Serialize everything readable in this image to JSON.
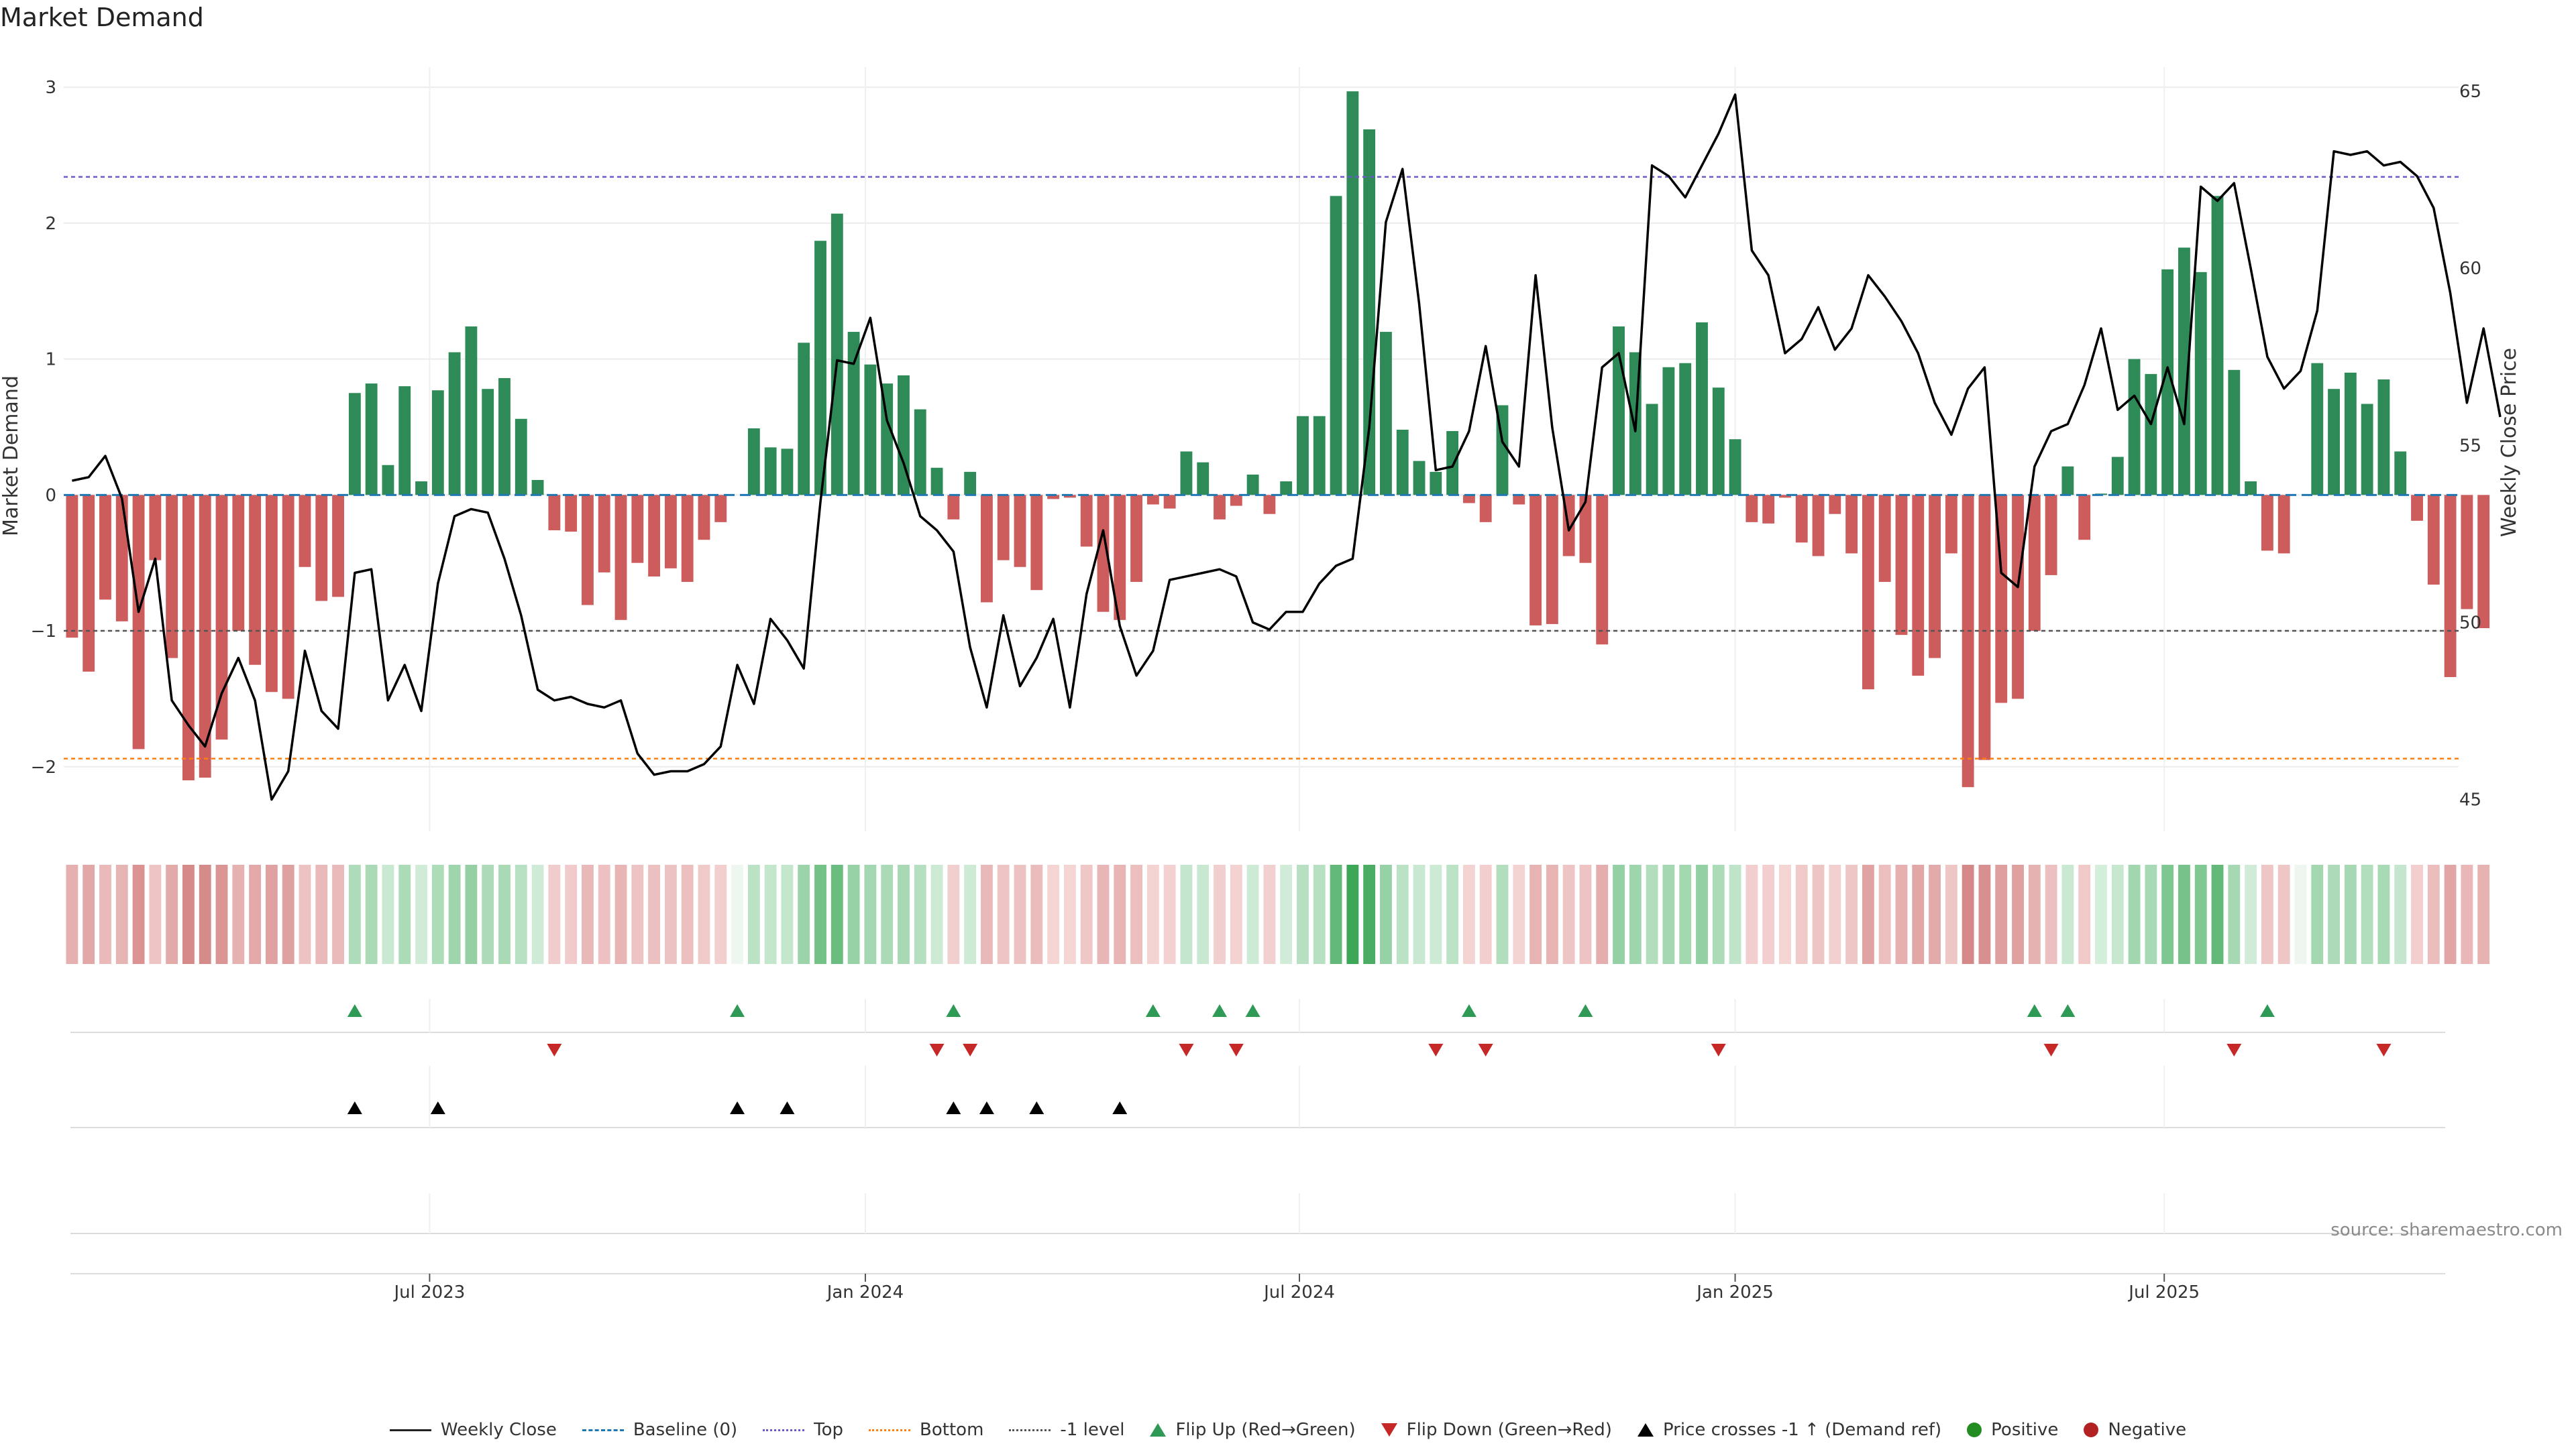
{
  "colors": {
    "pos_bar": "#2e8b57",
    "neg_bar": "#cd5c5c",
    "price_line": "#000000",
    "baseline": "#1f77b4",
    "top_line": "#6a5acd",
    "bottom_line": "#ff7f0e",
    "neg1_line": "#555555",
    "flip_up": "#2e9a56",
    "flip_down": "#c62828",
    "cross": "#000000",
    "positive_dot": "#228b22",
    "negative_dot": "#b22222"
  },
  "chart_data": {
    "type": "bar",
    "title": "Market Demand",
    "ylabel": "Market Demand",
    "y2label": "Weekly Close Price",
    "ylim": [
      -2.45,
      3.05
    ],
    "y2lim": [
      44.2,
      65.3
    ],
    "yticks": [
      {
        "v": 3,
        "label": "3"
      },
      {
        "v": 2,
        "label": "2"
      },
      {
        "v": 1,
        "label": "1"
      },
      {
        "v": 0,
        "label": "0"
      },
      {
        "v": -1,
        "label": "−1"
      },
      {
        "v": -2,
        "label": "−2"
      }
    ],
    "y2ticks": [
      {
        "v": 65,
        "label": "65"
      },
      {
        "v": 60,
        "label": "60"
      },
      {
        "v": 55,
        "label": "55"
      },
      {
        "v": 50,
        "label": "50"
      },
      {
        "v": 45,
        "label": "45"
      }
    ],
    "week_count": 144,
    "xticks": [
      {
        "week": 21.5,
        "label": "Jul 2023"
      },
      {
        "week": 47.7,
        "label": "Jan 2024"
      },
      {
        "week": 73.8,
        "label": "Jul 2024"
      },
      {
        "week": 100,
        "label": "Jan 2025"
      },
      {
        "week": 125.8,
        "label": "Jul 2025"
      }
    ],
    "reference_levels": {
      "top": 2.34,
      "bottom": -1.94,
      "minus_one": -1,
      "baseline": 0
    },
    "demand": [
      -1.05,
      -1.3,
      -0.77,
      -0.93,
      -1.87,
      -0.48,
      -1.2,
      -2.1,
      -2.08,
      -1.8,
      -1.0,
      -1.25,
      -1.45,
      -1.5,
      -0.53,
      -0.78,
      -0.75,
      0.75,
      0.82,
      0.22,
      0.8,
      0.1,
      0.77,
      1.05,
      1.24,
      0.78,
      0.86,
      0.56,
      0.11,
      -0.26,
      -0.27,
      -0.81,
      -0.57,
      -0.92,
      -0.5,
      -0.6,
      -0.54,
      -0.64,
      -0.33,
      -0.2,
      0,
      0.49,
      0.35,
      0.34,
      1.12,
      1.87,
      2.07,
      1.2,
      0.96,
      0.82,
      0.88,
      0.63,
      0.2,
      -0.18,
      0.17,
      -0.79,
      -0.48,
      -0.53,
      -0.7,
      -0.03,
      -0.02,
      -0.38,
      -0.86,
      -0.92,
      -0.64,
      -0.07,
      -0.1,
      0.32,
      0.24,
      -0.18,
      -0.08,
      0.15,
      -0.14,
      0.1,
      0.58,
      0.58,
      2.2,
      2.97,
      2.69,
      1.2,
      0.48,
      0.25,
      0.17,
      0.47,
      -0.06,
      -0.2,
      0.66,
      -0.07,
      -0.96,
      -0.95,
      -0.45,
      -0.5,
      -1.1,
      1.24,
      1.05,
      0.67,
      0.94,
      0.97,
      1.27,
      0.79,
      0.41,
      -0.2,
      -0.21,
      -0.02,
      -0.35,
      -0.45,
      -0.14,
      -0.43,
      -1.43,
      -0.64,
      -1.03,
      -1.33,
      -1.2,
      -0.43,
      -2.15,
      -1.95,
      -1.53,
      -1.5,
      -1.0,
      -0.59,
      0.21,
      -0.33,
      0.01,
      0.28,
      1.0,
      0.89,
      1.66,
      1.82,
      1.64,
      2.2,
      0.92,
      0.1,
      -0.41,
      -0.43,
      0,
      0.97,
      0.78,
      0.9,
      0.67,
      0.85,
      0.32,
      -0.19,
      -0.66,
      -1.34,
      -0.84,
      -0.98
    ],
    "price": [
      54.0,
      54.1,
      54.7,
      53.5,
      50.3,
      51.8,
      47.8,
      47.1,
      46.5,
      48.0,
      49.0,
      47.8,
      45.0,
      45.8,
      49.2,
      47.5,
      47.0,
      51.4,
      51.5,
      47.8,
      48.8,
      47.5,
      51.1,
      53.0,
      53.2,
      53.1,
      51.8,
      50.2,
      48.1,
      47.8,
      47.9,
      47.7,
      47.6,
      47.8,
      46.3,
      45.7,
      45.8,
      45.8,
      46.0,
      46.5,
      48.8,
      47.7,
      50.1,
      49.5,
      48.7,
      53.4,
      57.4,
      57.3,
      58.6,
      55.7,
      54.5,
      53.0,
      52.6,
      52.0,
      49.3,
      47.6,
      50.2,
      48.2,
      49.0,
      50.1,
      47.6,
      50.8,
      52.6,
      49.9,
      48.5,
      49.2,
      51.2,
      51.3,
      51.4,
      51.5,
      51.3,
      50.0,
      49.8,
      50.3,
      50.3,
      51.1,
      51.6,
      51.8,
      55.5,
      61.3,
      62.8,
      59.0,
      54.3,
      54.4,
      55.4,
      57.8,
      55.1,
      54.4,
      59.8,
      55.5,
      52.6,
      53.4,
      57.2,
      57.6,
      55.4,
      62.9,
      62.6,
      62.0,
      62.9,
      63.8,
      64.9,
      60.5,
      59.8,
      57.6,
      58.0,
      58.9,
      57.7,
      58.3,
      59.8,
      59.2,
      58.5,
      57.6,
      56.2,
      55.3,
      56.6,
      57.2,
      51.4,
      51.0,
      54.4,
      55.4,
      55.6,
      56.7,
      58.3,
      56.0,
      56.4,
      55.6,
      57.2,
      55.6,
      62.3,
      61.9,
      62.4,
      60.0,
      57.5,
      56.6,
      57.1,
      58.8,
      63.3,
      63.2,
      63.3,
      62.9,
      63.0,
      62.6,
      61.7,
      59.3,
      56.2,
      58.3,
      55.8
    ],
    "flip_up_weeks": [
      17,
      40,
      53,
      65,
      69,
      71,
      84,
      91,
      118,
      120,
      132
    ],
    "flip_down_weeks": [
      29,
      52,
      54,
      67,
      70,
      82,
      85,
      99,
      119,
      130,
      139
    ],
    "cross_weeks": [
      17,
      22,
      40,
      43,
      53,
      55,
      58,
      63
    ],
    "legend": [
      {
        "kind": "line-solid",
        "color": "#222222",
        "label": "Weekly Close"
      },
      {
        "kind": "line-dash",
        "color": "#1f77b4",
        "label": "Baseline (0)"
      },
      {
        "kind": "line-dot",
        "color": "#6a5acd",
        "label": "Top"
      },
      {
        "kind": "line-dot",
        "color": "#ff7f0e",
        "label": "Bottom"
      },
      {
        "kind": "line-dot",
        "color": "#555555",
        "label": "-1 level"
      },
      {
        "kind": "tri-up",
        "color": "#2e9a56",
        "label": "Flip Up (Red→Green)"
      },
      {
        "kind": "tri-down",
        "color": "#c62828",
        "label": "Flip Down (Green→Red)"
      },
      {
        "kind": "tri-up",
        "color": "#000000",
        "label": "Price crosses -1 ↑ (Demand ref)"
      },
      {
        "kind": "dot",
        "color": "#228b22",
        "label": "Positive"
      },
      {
        "kind": "dot",
        "color": "#b22222",
        "label": "Negative"
      }
    ]
  },
  "source_text": "source: sharemaestro.com"
}
